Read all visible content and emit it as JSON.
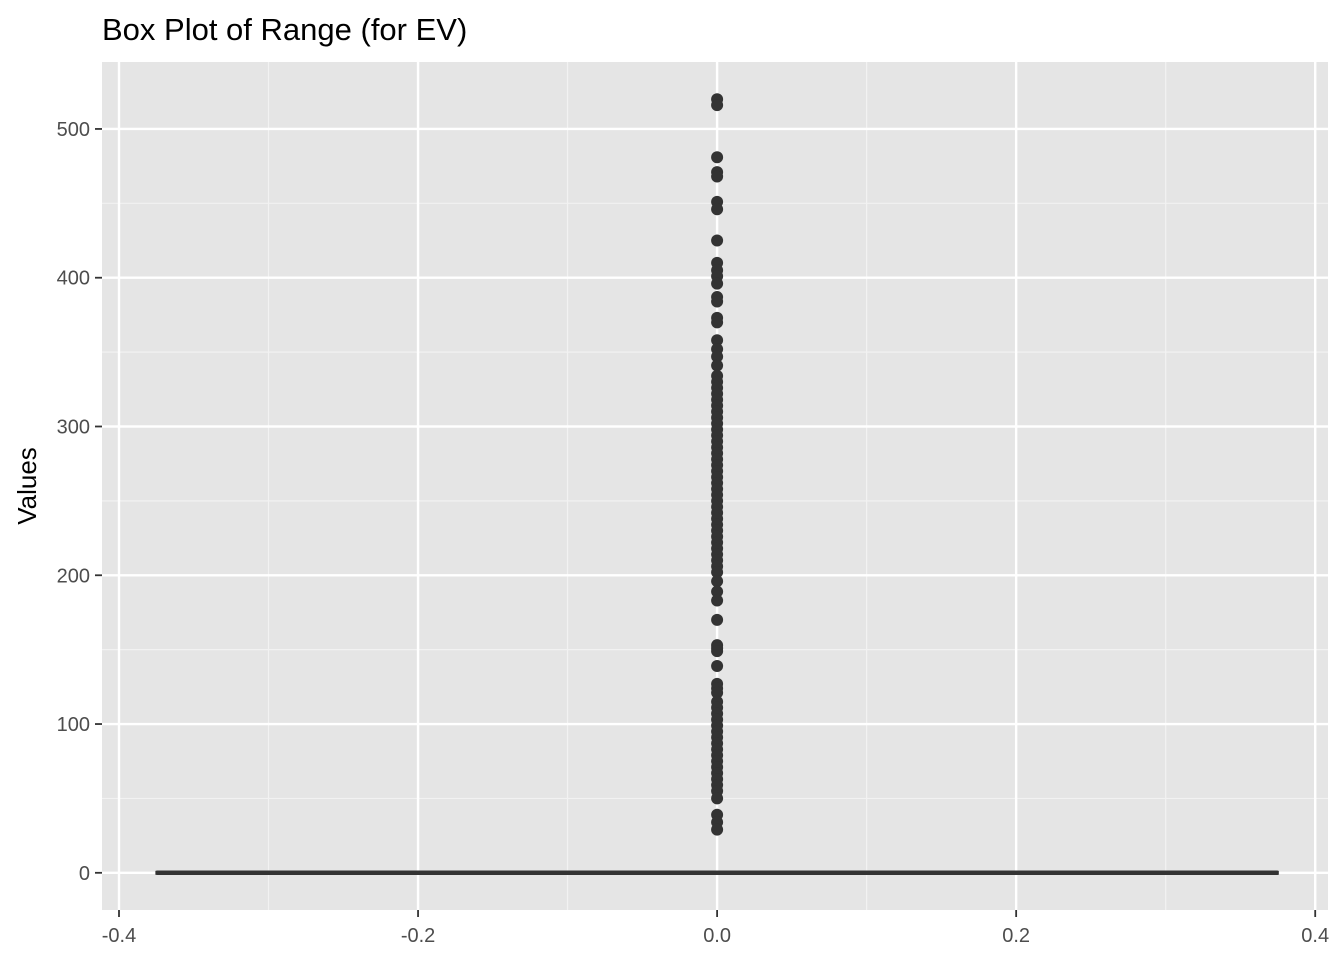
{
  "chart_data": {
    "type": "box",
    "title": "Box Plot of Range (for EV)",
    "xlabel": "",
    "ylabel": "Values",
    "xlim": [
      -0.4,
      0.4
    ],
    "ylim": [
      -25,
      545
    ],
    "x_ticks": [
      -0.4,
      -0.2,
      0.0,
      0.2,
      0.4
    ],
    "x_tick_labels": [
      "-0.4",
      "-0.2",
      "0.0",
      "0.2",
      "0.4"
    ],
    "y_ticks": [
      0,
      100,
      200,
      300,
      400,
      500
    ],
    "y_tick_labels": [
      "0",
      "100",
      "200",
      "300",
      "400",
      "500"
    ],
    "grid": true,
    "box": {
      "x": 0,
      "x_min": -0.375,
      "x_max": 0.375,
      "q1": 0,
      "median": 0,
      "q3": 0,
      "whisker_low": 0,
      "whisker_high": 0
    },
    "outliers": {
      "x": 0,
      "values": [
        520,
        516,
        481,
        471,
        468,
        451,
        446,
        425,
        410,
        405,
        401,
        396,
        387,
        384,
        373,
        370,
        358,
        352,
        347,
        341,
        334,
        330,
        326,
        322,
        318,
        314,
        310,
        306,
        302,
        298,
        294,
        290,
        286,
        282,
        278,
        274,
        270,
        266,
        262,
        258,
        254,
        250,
        246,
        242,
        238,
        234,
        230,
        226,
        222,
        218,
        214,
        210,
        206,
        202,
        196,
        189,
        183,
        170,
        153,
        151,
        149,
        139,
        127,
        124,
        121,
        115,
        111,
        107,
        103,
        99,
        95,
        91,
        87,
        83,
        79,
        75,
        71,
        67,
        63,
        59,
        55,
        50,
        39,
        34,
        29
      ]
    },
    "colors": {
      "panel_background": "#e5e5e5",
      "grid_major": "#ffffff",
      "grid_minor": "#f2f2f2",
      "marks": "#333333",
      "tick_label": "#4d4d4d",
      "tick_mark": "#333333"
    }
  }
}
